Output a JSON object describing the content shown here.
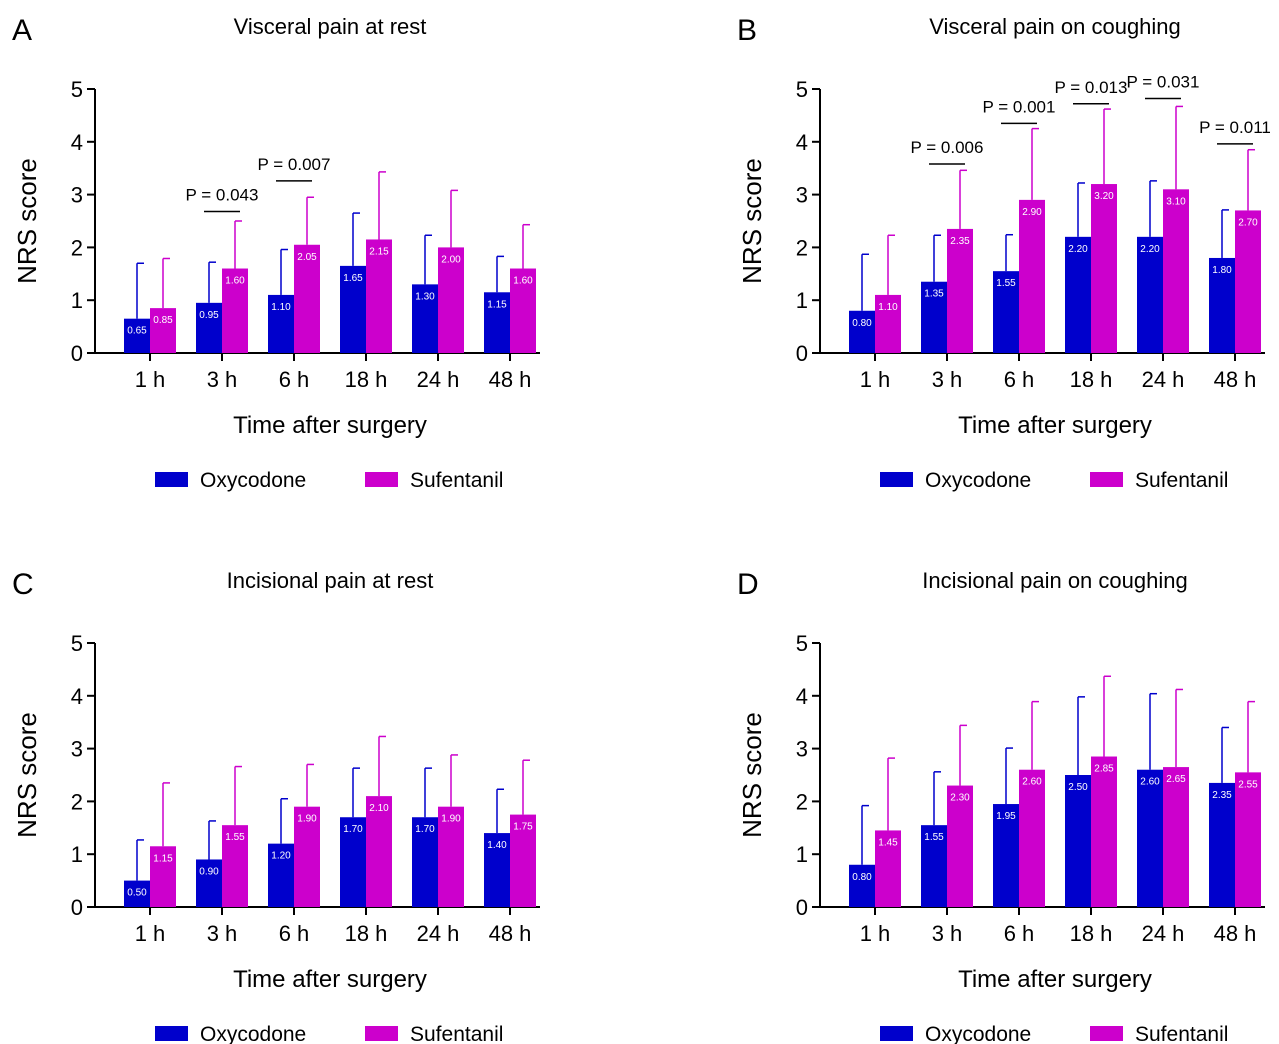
{
  "chart_data": [
    {
      "panel_label": "A",
      "type": "bar",
      "title": "Visceral pain at rest",
      "xlabel": "Time after surgery",
      "ylabel": "NRS score",
      "ylim": [
        0,
        5
      ],
      "yticks": [
        "0",
        "1",
        "2",
        "3",
        "4",
        "5"
      ],
      "categories": [
        "1 h",
        "3 h",
        "6 h",
        "18 h",
        "24 h",
        "48 h"
      ],
      "series": [
        {
          "name": "Oxycodone",
          "color": "#0000cc",
          "values": [
            0.65,
            0.95,
            1.1,
            1.65,
            1.3,
            1.15
          ],
          "labels": [
            "0.65",
            "0.95",
            "1.10",
            "1.65",
            "1.30",
            "1.15"
          ],
          "error_upper": [
            1.7,
            1.72,
            1.96,
            2.65,
            2.23,
            1.83
          ]
        },
        {
          "name": "Sufentanil",
          "color": "#cc00cc",
          "values": [
            0.85,
            1.6,
            2.05,
            2.15,
            2.0,
            1.6
          ],
          "labels": [
            "0.85",
            "1.60",
            "2.05",
            "2.15",
            "2.00",
            "1.60"
          ],
          "error_upper": [
            1.79,
            2.5,
            2.95,
            3.43,
            3.08,
            2.43
          ]
        }
      ],
      "annotations": [
        {
          "category": "3 h",
          "text": "P = 0.043",
          "y": 2.68
        },
        {
          "category": "6 h",
          "text": "P = 0.007",
          "y": 3.26
        }
      ],
      "legend_position": "bottom"
    },
    {
      "panel_label": "B",
      "type": "bar",
      "title": "Visceral pain on coughing",
      "xlabel": "Time after surgery",
      "ylabel": "NRS score",
      "ylim": [
        0,
        5
      ],
      "yticks": [
        "0",
        "1",
        "2",
        "3",
        "4",
        "5"
      ],
      "categories": [
        "1 h",
        "3 h",
        "6 h",
        "18 h",
        "24 h",
        "48 h"
      ],
      "series": [
        {
          "name": "Oxycodone",
          "color": "#0000cc",
          "values": [
            0.8,
            1.35,
            1.55,
            2.2,
            2.2,
            1.8
          ],
          "labels": [
            "0.80",
            "1.35",
            "1.55",
            "2.20",
            "2.20",
            "1.80"
          ],
          "error_upper": [
            1.87,
            2.23,
            2.24,
            3.22,
            3.26,
            2.71
          ]
        },
        {
          "name": "Sufentanil",
          "color": "#cc00cc",
          "values": [
            1.1,
            2.35,
            2.9,
            3.2,
            3.1,
            2.7
          ],
          "labels": [
            "1.10",
            "2.35",
            "2.90",
            "3.20",
            "3.10",
            "2.70"
          ],
          "error_upper": [
            2.23,
            3.46,
            4.25,
            4.62,
            4.67,
            3.85
          ]
        }
      ],
      "annotations": [
        {
          "category": "3 h",
          "text": "P = 0.006",
          "y": 3.58
        },
        {
          "category": "6 h",
          "text": "P = 0.001",
          "y": 4.35
        },
        {
          "category": "18 h",
          "text": "P = 0.013",
          "y": 4.72
        },
        {
          "category": "24 h",
          "text": "P = 0.031",
          "y": 4.82
        },
        {
          "category": "48 h",
          "text": "P = 0.011",
          "y": 3.96
        }
      ],
      "legend_position": "bottom"
    },
    {
      "panel_label": "C",
      "type": "bar",
      "title": "Incisional pain at rest",
      "xlabel": "Time after surgery",
      "ylabel": "NRS score",
      "ylim": [
        0,
        5
      ],
      "yticks": [
        "0",
        "1",
        "2",
        "3",
        "4",
        "5"
      ],
      "categories": [
        "1 h",
        "3 h",
        "6 h",
        "18 h",
        "24 h",
        "48 h"
      ],
      "series": [
        {
          "name": "Oxycodone",
          "color": "#0000cc",
          "values": [
            0.5,
            0.9,
            1.2,
            1.7,
            1.7,
            1.4
          ],
          "labels": [
            "0.50",
            "0.90",
            "1.20",
            "1.70",
            "1.70",
            "1.40"
          ],
          "error_upper": [
            1.27,
            1.63,
            2.05,
            2.63,
            2.63,
            2.23
          ]
        },
        {
          "name": "Sufentanil",
          "color": "#cc00cc",
          "values": [
            1.15,
            1.55,
            1.9,
            2.1,
            1.9,
            1.75
          ],
          "labels": [
            "1.15",
            "1.55",
            "1.90",
            "2.10",
            "1.90",
            "1.75"
          ],
          "error_upper": [
            2.35,
            2.66,
            2.7,
            3.23,
            2.88,
            2.78
          ]
        }
      ],
      "annotations": [],
      "legend_position": "bottom"
    },
    {
      "panel_label": "D",
      "type": "bar",
      "title": "Incisional pain on coughing",
      "xlabel": "Time after surgery",
      "ylabel": "NRS score",
      "ylim": [
        0,
        5
      ],
      "yticks": [
        "0",
        "1",
        "2",
        "3",
        "4",
        "5"
      ],
      "categories": [
        "1 h",
        "3 h",
        "6 h",
        "18 h",
        "24 h",
        "48 h"
      ],
      "series": [
        {
          "name": "Oxycodone",
          "color": "#0000cc",
          "values": [
            0.8,
            1.55,
            1.95,
            2.5,
            2.6,
            2.35
          ],
          "labels": [
            "0.80",
            "1.55",
            "1.95",
            "2.50",
            "2.60",
            "2.35"
          ],
          "error_upper": [
            1.92,
            2.56,
            3.01,
            3.98,
            4.04,
            3.4
          ]
        },
        {
          "name": "Sufentanil",
          "color": "#cc00cc",
          "values": [
            1.45,
            2.3,
            2.6,
            2.85,
            2.65,
            2.55
          ],
          "labels": [
            "1.45",
            "2.30",
            "2.60",
            "2.85",
            "2.65",
            "2.55"
          ],
          "error_upper": [
            2.82,
            3.44,
            3.89,
            4.37,
            4.12,
            3.89
          ]
        }
      ],
      "annotations": [],
      "legend_position": "bottom"
    }
  ]
}
